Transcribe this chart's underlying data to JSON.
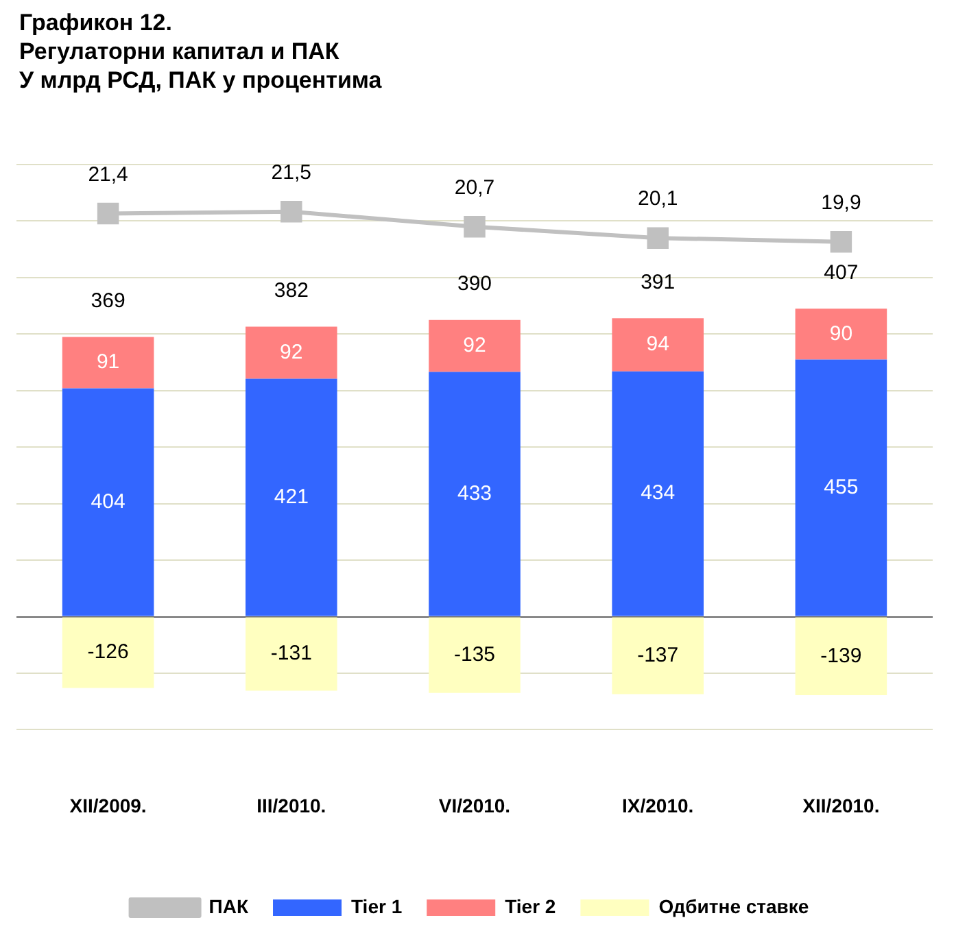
{
  "chart_data": {
    "type": "bar",
    "title": "Графикон 12.",
    "subtitle": "Регулаторни капитал и ПАК\nУ млрд РСД, ПАК у процентима",
    "categories": [
      "XII/2009.",
      "III/2010.",
      "VI/2010.",
      "IX/2010.",
      "XII/2010."
    ],
    "series": [
      {
        "name": "Tier 1",
        "color": "#3366ff",
        "values": [
          404,
          421,
          433,
          434,
          455
        ]
      },
      {
        "name": "Tier 2",
        "color": "#ff8080",
        "values": [
          91,
          92,
          92,
          94,
          90
        ]
      },
      {
        "name": "Одбитне ставке",
        "color": "#ffffc0",
        "values": [
          -126,
          -131,
          -135,
          -137,
          -139
        ]
      },
      {
        "name": "ПАК",
        "type": "line",
        "axis": "y2",
        "color": "#c0c0c0",
        "values": [
          21.4,
          21.5,
          20.7,
          20.1,
          19.9
        ],
        "value_labels": [
          "21,4",
          "21,5",
          "20,7",
          "20,1",
          "19,9"
        ]
      }
    ],
    "stacked": true,
    "data_labels": true,
    "totals": [
      "369",
      "382",
      "390",
      "391",
      "407"
    ],
    "ylim": [
      -200,
      800
    ],
    "yticks": [
      {
        "value": -200,
        "label": null
      },
      {
        "value": -100,
        "label": null
      },
      {
        "value": 0,
        "label": null
      },
      {
        "value": 100,
        "label": null
      },
      {
        "value": 200,
        "label": null
      },
      {
        "value": 300,
        "label": null
      },
      {
        "value": 400,
        "label": null
      },
      {
        "value": 500,
        "label": null
      },
      {
        "value": 600,
        "label": null
      },
      {
        "value": 700,
        "label": null
      },
      {
        "value": 800,
        "label": null
      }
    ],
    "y2lim": [
      -6,
      24
    ],
    "grid": "y",
    "legend": "bottom",
    "tick_labels": "x",
    "marker": "square",
    "line_style": "solid"
  }
}
